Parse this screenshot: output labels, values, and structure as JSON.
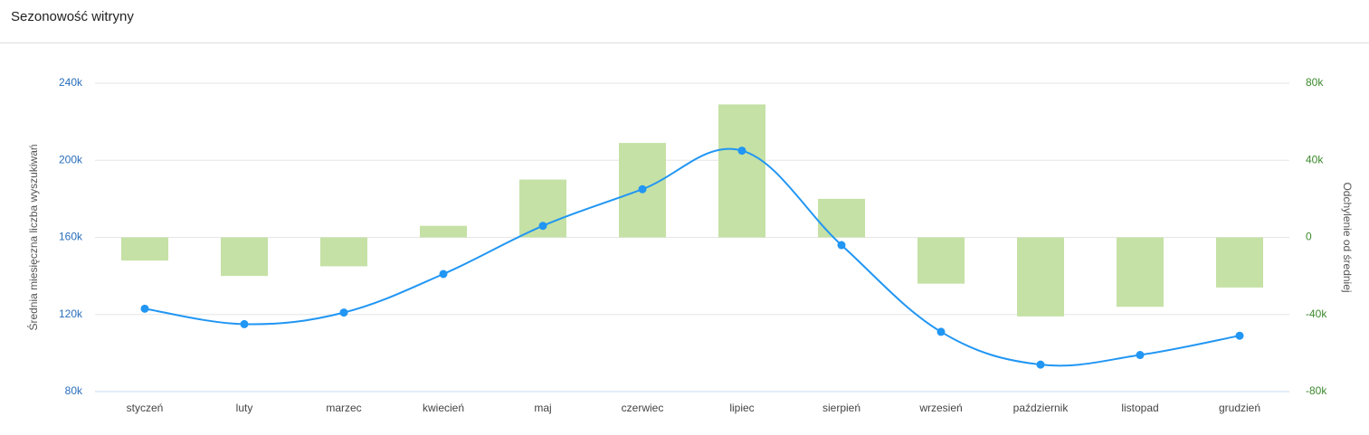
{
  "chart_data": {
    "type": "combo",
    "title": "Sezonowość witryny",
    "y_label": "Średnia miesięczna liczba wyszukiwań",
    "y2_label": "Odchylenie od średniej",
    "categories": [
      "styczeń",
      "luty",
      "marzec",
      "kwiecień",
      "maj",
      "czerwiec",
      "lipiec",
      "sierpień",
      "wrzesień",
      "październik",
      "listopad",
      "grudzień"
    ],
    "series": [
      {
        "type": "bar",
        "axis": "y2",
        "color": "#c5e1a5",
        "values": [
          -12000,
          -20000,
          -15000,
          6000,
          30000,
          49000,
          69000,
          20000,
          -24000,
          -41000,
          -36000,
          -26000
        ]
      },
      {
        "type": "line",
        "color": "#2196f3",
        "values": [
          123000,
          115000,
          121000,
          141000,
          166000,
          185000,
          205000,
          156000,
          111000,
          94000,
          99000,
          109000
        ]
      }
    ],
    "ylim": [
      80000,
      240000
    ],
    "yticks": [
      {
        "value": 80000,
        "label": "80k"
      },
      {
        "value": 120000,
        "label": "120k"
      },
      {
        "value": 160000,
        "label": "160k"
      },
      {
        "value": 200000,
        "label": "200k"
      },
      {
        "value": 240000,
        "label": "240k"
      }
    ],
    "y2lim": [
      -80000,
      80000
    ],
    "y2ticks": [
      {
        "value": -80000,
        "label": "-80k"
      },
      {
        "value": -40000,
        "label": "-40k"
      },
      {
        "value": 0,
        "label": "0"
      },
      {
        "value": 40000,
        "label": "40k"
      },
      {
        "value": 80000,
        "label": "80k"
      }
    ],
    "grid": true
  }
}
